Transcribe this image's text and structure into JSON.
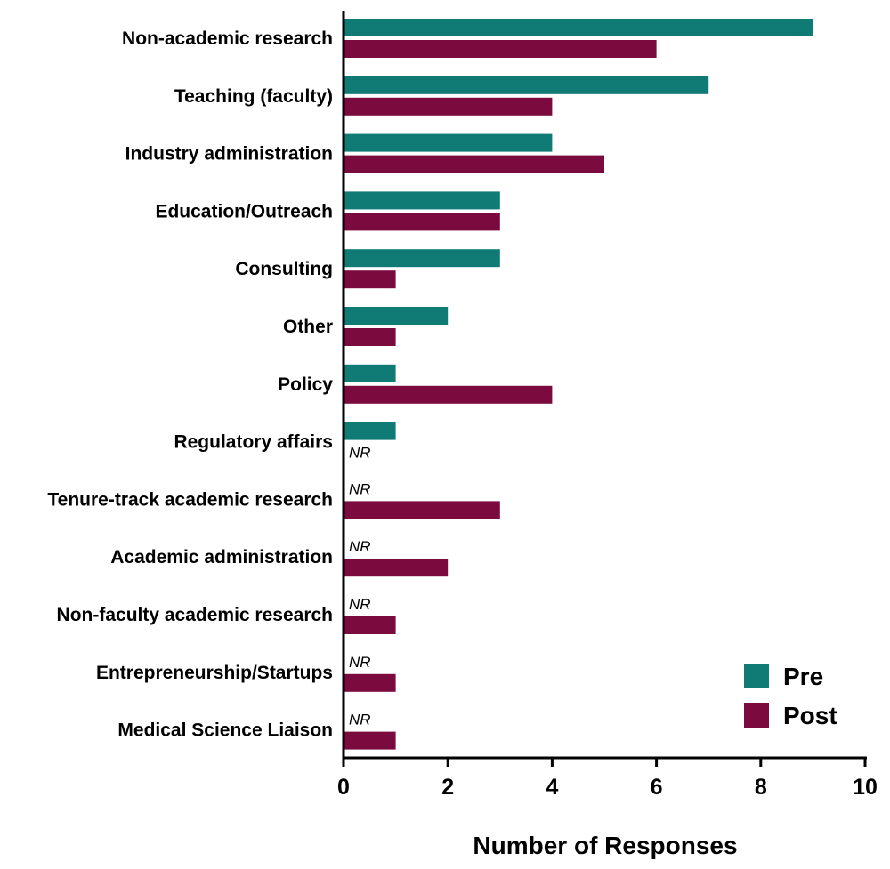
{
  "chart_data": {
    "type": "bar",
    "orientation": "horizontal",
    "categories": [
      "Non-academic research",
      "Teaching (faculty)",
      "Industry administration",
      "Education/Outreach",
      "Consulting",
      "Other",
      "Policy",
      "Regulatory affairs",
      "Tenure-track academic research",
      "Academic administration",
      "Non-faculty academic research",
      "Entrepreneurship/Startups",
      "Medical Science Liaison"
    ],
    "series": [
      {
        "name": "Pre",
        "color": "#0f7b74",
        "values": [
          9,
          7,
          4,
          3,
          3,
          2,
          1,
          1,
          0,
          0,
          0,
          0,
          0
        ]
      },
      {
        "name": "Post",
        "color": "#7b0a3e",
        "values": [
          6,
          4,
          5,
          3,
          1,
          1,
          4,
          0,
          3,
          2,
          1,
          1,
          1
        ]
      }
    ],
    "no_response_label": "NR",
    "no_response": [
      {
        "category": "Regulatory affairs",
        "series": "Post"
      },
      {
        "category": "Tenure-track academic research",
        "series": "Pre"
      },
      {
        "category": "Academic administration",
        "series": "Pre"
      },
      {
        "category": "Non-faculty academic research",
        "series": "Pre"
      },
      {
        "category": "Entrepreneurship/Startups",
        "series": "Pre"
      },
      {
        "category": "Medical Science Liaison",
        "series": "Pre"
      }
    ],
    "xlabel": "Number of Responses",
    "ylabel": "",
    "title": "",
    "xlim": [
      0,
      10
    ],
    "xticks": [
      0,
      2,
      4,
      6,
      8,
      10
    ],
    "grid": false,
    "legend_position": "bottom-right"
  }
}
